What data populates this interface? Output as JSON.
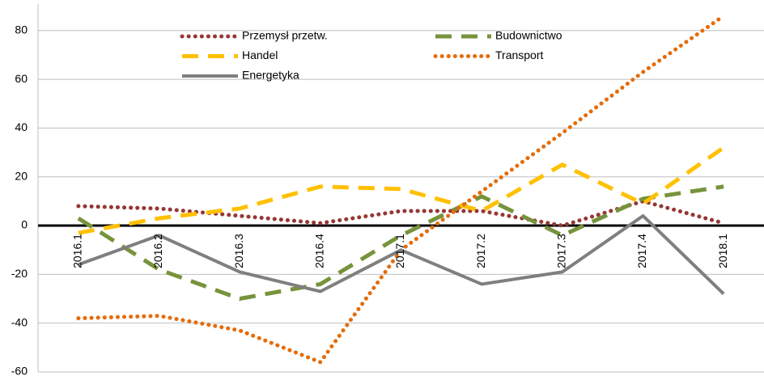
{
  "chart_data": {
    "type": "line",
    "categories": [
      "2016.1",
      "2016.2",
      "2016.3",
      "2016.4",
      "2017.1",
      "2017.2",
      "2017.3",
      "2017.4",
      "2018.1"
    ],
    "series": [
      {
        "name": "Przemysł przetw.",
        "color": "#953735",
        "style": "dotted",
        "values": [
          8,
          7,
          4,
          1,
          6,
          6,
          0,
          10,
          1
        ]
      },
      {
        "name": "Budownictwo",
        "color": "#77933c",
        "style": "dashed",
        "values": [
          3,
          -18,
          -30,
          -24,
          -4,
          12,
          -4,
          11,
          16
        ]
      },
      {
        "name": "Handel",
        "color": "#ffc000",
        "style": "dashed",
        "values": [
          -3,
          3,
          7,
          16,
          15,
          6,
          25,
          9,
          32
        ]
      },
      {
        "name": "Transport",
        "color": "#e46c0a",
        "style": "dotted",
        "values": [
          -38,
          -37,
          -43,
          -56,
          -10,
          14,
          38,
          63,
          86
        ]
      },
      {
        "name": "Energetyka",
        "color": "#7f7f7f",
        "style": "solid",
        "values": [
          -16,
          -4,
          -19,
          -27,
          -10,
          -24,
          -19,
          4,
          -28
        ]
      }
    ],
    "ylim": [
      -60,
      90
    ],
    "yticks": [
      -60,
      -40,
      -20,
      0,
      20,
      40,
      60,
      80
    ],
    "grid": true
  }
}
